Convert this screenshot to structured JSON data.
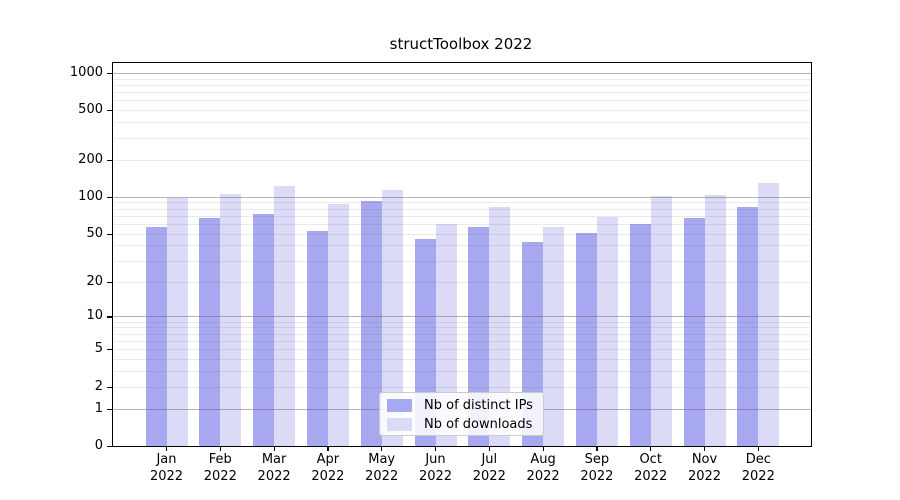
{
  "figure_title": "structToolbox 2022",
  "chart_data": {
    "type": "bar",
    "title": "structToolbox 2022",
    "categories": [
      "Jan",
      "Feb",
      "Mar",
      "Apr",
      "May",
      "Jun",
      "Jul",
      "Aug",
      "Sep",
      "Oct",
      "Nov",
      "Dec"
    ],
    "category_year": "2022",
    "series": [
      {
        "name": "Nb of distinct IPs",
        "color": "#a8a8f0",
        "values": [
          57,
          67,
          73,
          53,
          93,
          45,
          57,
          43,
          51,
          60,
          67,
          82
        ]
      },
      {
        "name": "Nb of downloads",
        "color": "#dbdbf8",
        "values": [
          97,
          105,
          123,
          88,
          114,
          60,
          83,
          57,
          68,
          101,
          103,
          129
        ]
      }
    ],
    "xlabel": "",
    "ylabel": "",
    "yaxis": {
      "scale": "log1p",
      "ylim": [
        0,
        1200
      ],
      "ticks": [
        0,
        1,
        2,
        5,
        10,
        20,
        50,
        100,
        200,
        500,
        1000
      ],
      "major_gridlines": [
        1,
        10,
        100,
        1000
      ],
      "minor_gridlines": [
        2,
        3,
        4,
        5,
        6,
        7,
        8,
        9,
        20,
        30,
        40,
        50,
        60,
        70,
        80,
        90,
        200,
        300,
        400,
        500,
        600,
        700,
        800,
        900
      ],
      "grid": true
    },
    "legend": {
      "position": "lower center"
    }
  }
}
